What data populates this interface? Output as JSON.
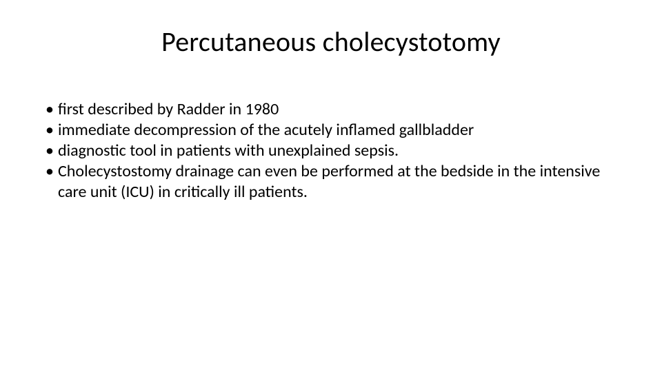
{
  "slide": {
    "title": "Percutaneous cholecystotomy",
    "title_fontsize": 40,
    "title_color": "#000000",
    "body_fontsize": 24,
    "body_color": "#000000",
    "background_color": "#ffffff",
    "bullet_glyph": "•",
    "bullets": [
      "first described by Radder in 1980",
      "immediate decompression of the acutely inflamed gallbladder",
      "diagnostic tool in patients with unexplained sepsis.",
      "Cholecystostomy drainage can even be performed at the bedside in the intensive care unit (ICU) in critically ill patients."
    ]
  }
}
